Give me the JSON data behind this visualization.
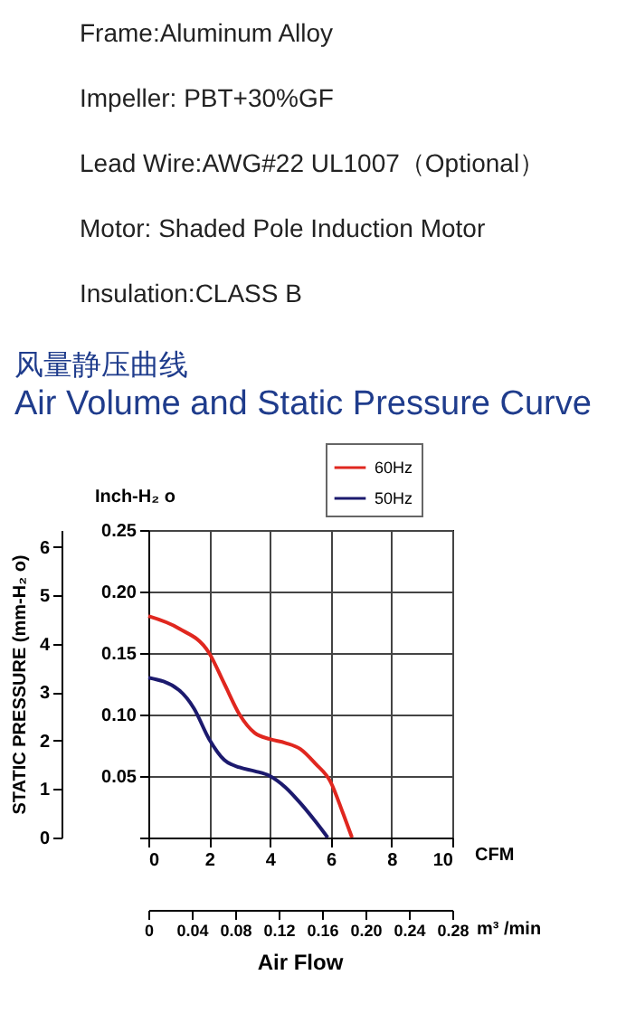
{
  "chart_data": {
    "type": "line",
    "title": "风量静压曲线",
    "subtitle": "Air Volume and Static Pressure Curve",
    "annotations": [
      "Frame:Aluminum Alloy",
      "Impeller: PBT+30%GF",
      "Lead Wire:AWG#22 UL1007（Optional）",
      "Motor: Shaded Pole Induction Motor",
      "Insulation:CLASS B",
      "Air Flow"
    ],
    "xlabel": "CFM",
    "ylabel": "Inch-H₂ o",
    "y2label": "STATIC PRESSURE (mm-H₂ o)",
    "x2label": "m³ /min",
    "xlim": [
      0,
      10
    ],
    "xticks": [
      0,
      2,
      4,
      6,
      8,
      10
    ],
    "ylim": [
      0,
      0.25
    ],
    "yticks": [
      {
        "value": 0,
        "label": null
      },
      0.05,
      {
        "value": 0.1,
        "label": "0.10"
      },
      0.15,
      {
        "value": 0.2,
        "label": "0.20"
      },
      0.25
    ],
    "y2lim": [
      0,
      6.35
    ],
    "y2ticks": [
      0,
      1,
      2,
      3,
      4,
      5,
      6
    ],
    "x2lim": [
      0,
      0.28
    ],
    "x2ticks": [
      0,
      0.04,
      0.08,
      0.12,
      0.16,
      {
        "value": 0.2,
        "label": "0.20"
      },
      0.24,
      0.28
    ],
    "grid": true,
    "legend": "top right",
    "series": [
      {
        "name": "60Hz",
        "color": "#e0271f",
        "x": [
          0,
          1,
          2,
          2.5,
          3,
          3.5,
          4,
          4.5,
          5,
          5.5,
          6,
          6.4,
          6.7
        ],
        "values": [
          0.18,
          0.17,
          0.15,
          0.125,
          0.1,
          0.085,
          0.08,
          0.077,
          0.072,
          0.06,
          0.045,
          0.02,
          0
        ]
      },
      {
        "name": "50Hz",
        "color": "#1c1a6e",
        "x": [
          0,
          1,
          1.5,
          2,
          2.5,
          3,
          3.5,
          4,
          4.5,
          5,
          5.5,
          5.9
        ],
        "values": [
          0.13,
          0.12,
          0.105,
          0.08,
          0.063,
          0.057,
          0.054,
          0.05,
          0.041,
          0.028,
          0.013,
          0
        ]
      }
    ]
  }
}
